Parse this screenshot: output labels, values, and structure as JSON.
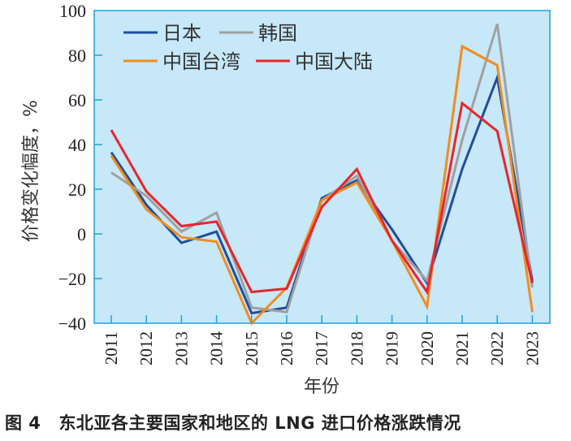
{
  "chart_data": {
    "type": "line",
    "title": "图 4　东北亚各主要国家和地区的 LNG 进口价格涨跌情况",
    "caption_label": "图 4",
    "caption_text": "东北亚各主要国家和地区的 LNG 进口价格涨跌情况",
    "xlabel": "年份",
    "ylabel": "价格变化幅度，%",
    "x": [
      "2011",
      "2012",
      "2013",
      "2014",
      "2015",
      "2016",
      "2017",
      "2018",
      "2019",
      "2020",
      "2021",
      "2022",
      "2023"
    ],
    "ylim": [
      -40,
      100
    ],
    "yticks": [
      -40,
      -20,
      0,
      20,
      40,
      60,
      80,
      100
    ],
    "ytick_labels": [
      "−40",
      "−20",
      "0",
      "20",
      "40",
      "60",
      "80",
      "100"
    ],
    "grid": false,
    "legend_position": "top-left",
    "background_color": "#c6e8f8",
    "axis_color": "#1aa3e0",
    "series": [
      {
        "name": "日本",
        "color": "#1f4e9c",
        "values": [
          36.5,
          13,
          -4,
          1,
          -35.5,
          -33,
          16,
          24,
          2,
          -22,
          29,
          70,
          -21
        ]
      },
      {
        "name": "韩国",
        "color": "#a0a0a0",
        "values": [
          27.5,
          17,
          1,
          9.5,
          -33,
          -35,
          15,
          26,
          -3,
          -21,
          42,
          94,
          -24
        ]
      },
      {
        "name": "中国台湾",
        "color": "#f28c1e",
        "values": [
          35,
          11,
          -1.5,
          -3.5,
          -40,
          -24,
          15,
          23,
          -3,
          -32.5,
          84,
          75.5,
          -35
        ]
      },
      {
        "name": "中国大陆",
        "color": "#e8252b",
        "values": [
          46.5,
          19,
          3.5,
          5.5,
          -26,
          -24.5,
          12,
          29,
          -3,
          -26,
          58.5,
          46,
          -22
        ]
      }
    ]
  }
}
